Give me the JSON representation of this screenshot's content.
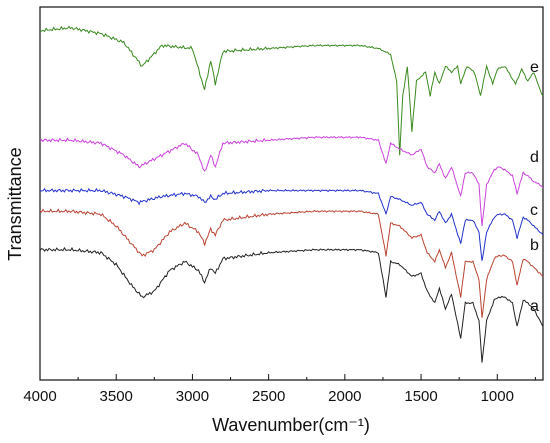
{
  "chart_data": {
    "type": "line",
    "title": "",
    "xlabel": "Wavenumber(cm⁻¹)",
    "ylabel": "Transmittance",
    "xlim": [
      4000,
      700
    ],
    "x_reversed": true,
    "y_ticks_shown": false,
    "grid": false,
    "legend": "none (series labelled at right end of each trace)",
    "xticks": [
      4000,
      3500,
      3000,
      2500,
      2000,
      1500,
      1000
    ],
    "series": [
      {
        "name": "e",
        "color": "#3a8a1e",
        "points": [
          [
            4000,
            0.92
          ],
          [
            3800,
            0.93
          ],
          [
            3600,
            0.91
          ],
          [
            3450,
            0.88
          ],
          [
            3330,
            0.8
          ],
          [
            3200,
            0.87
          ],
          [
            3000,
            0.86
          ],
          [
            2920,
            0.72
          ],
          [
            2880,
            0.82
          ],
          [
            2850,
            0.74
          ],
          [
            2800,
            0.85
          ],
          [
            2500,
            0.86
          ],
          [
            2200,
            0.87
          ],
          [
            1900,
            0.87
          ],
          [
            1780,
            0.86
          ],
          [
            1700,
            0.84
          ],
          [
            1660,
            0.75
          ],
          [
            1640,
            0.5
          ],
          [
            1620,
            0.7
          ],
          [
            1590,
            0.8
          ],
          [
            1560,
            0.58
          ],
          [
            1530,
            0.75
          ],
          [
            1470,
            0.78
          ],
          [
            1440,
            0.7
          ],
          [
            1410,
            0.78
          ],
          [
            1380,
            0.74
          ],
          [
            1340,
            0.8
          ],
          [
            1300,
            0.78
          ],
          [
            1260,
            0.8
          ],
          [
            1240,
            0.74
          ],
          [
            1200,
            0.8
          ],
          [
            1150,
            0.78
          ],
          [
            1110,
            0.7
          ],
          [
            1070,
            0.8
          ],
          [
            1030,
            0.74
          ],
          [
            1000,
            0.79
          ],
          [
            950,
            0.8
          ],
          [
            880,
            0.74
          ],
          [
            840,
            0.79
          ],
          [
            800,
            0.75
          ],
          [
            760,
            0.78
          ],
          [
            720,
            0.72
          ],
          [
            700,
            0.7
          ]
        ]
      },
      {
        "name": "d",
        "color": "#cc44dd",
        "points": [
          [
            4000,
            0.55
          ],
          [
            3800,
            0.55
          ],
          [
            3600,
            0.54
          ],
          [
            3450,
            0.5
          ],
          [
            3350,
            0.46
          ],
          [
            3200,
            0.5
          ],
          [
            3050,
            0.54
          ],
          [
            2960,
            0.5
          ],
          [
            2920,
            0.44
          ],
          [
            2880,
            0.5
          ],
          [
            2850,
            0.46
          ],
          [
            2800,
            0.54
          ],
          [
            2500,
            0.55
          ],
          [
            2200,
            0.56
          ],
          [
            1900,
            0.56
          ],
          [
            1780,
            0.55
          ],
          [
            1730,
            0.47
          ],
          [
            1700,
            0.54
          ],
          [
            1640,
            0.52
          ],
          [
            1560,
            0.5
          ],
          [
            1500,
            0.52
          ],
          [
            1460,
            0.46
          ],
          [
            1410,
            0.44
          ],
          [
            1380,
            0.47
          ],
          [
            1340,
            0.42
          ],
          [
            1300,
            0.46
          ],
          [
            1240,
            0.36
          ],
          [
            1210,
            0.44
          ],
          [
            1160,
            0.44
          ],
          [
            1120,
            0.4
          ],
          [
            1100,
            0.26
          ],
          [
            1070,
            0.4
          ],
          [
            1020,
            0.45
          ],
          [
            990,
            0.46
          ],
          [
            950,
            0.45
          ],
          [
            900,
            0.43
          ],
          [
            870,
            0.37
          ],
          [
            830,
            0.44
          ],
          [
            800,
            0.43
          ],
          [
            760,
            0.41
          ],
          [
            720,
            0.4
          ],
          [
            700,
            0.39
          ]
        ]
      },
      {
        "name": "c",
        "color": "#2233cc",
        "points": [
          [
            4000,
            0.38
          ],
          [
            3800,
            0.38
          ],
          [
            3600,
            0.38
          ],
          [
            3450,
            0.36
          ],
          [
            3350,
            0.34
          ],
          [
            3200,
            0.36
          ],
          [
            3050,
            0.37
          ],
          [
            2960,
            0.36
          ],
          [
            2920,
            0.34
          ],
          [
            2880,
            0.36
          ],
          [
            2850,
            0.35
          ],
          [
            2800,
            0.37
          ],
          [
            2500,
            0.38
          ],
          [
            2200,
            0.38
          ],
          [
            1900,
            0.38
          ],
          [
            1780,
            0.37
          ],
          [
            1730,
            0.3
          ],
          [
            1700,
            0.36
          ],
          [
            1640,
            0.35
          ],
          [
            1560,
            0.33
          ],
          [
            1500,
            0.34
          ],
          [
            1460,
            0.3
          ],
          [
            1410,
            0.28
          ],
          [
            1380,
            0.31
          ],
          [
            1340,
            0.27
          ],
          [
            1300,
            0.3
          ],
          [
            1240,
            0.2
          ],
          [
            1210,
            0.28
          ],
          [
            1160,
            0.28
          ],
          [
            1120,
            0.24
          ],
          [
            1100,
            0.14
          ],
          [
            1070,
            0.24
          ],
          [
            1020,
            0.29
          ],
          [
            990,
            0.3
          ],
          [
            950,
            0.3
          ],
          [
            900,
            0.28
          ],
          [
            870,
            0.22
          ],
          [
            830,
            0.29
          ],
          [
            800,
            0.28
          ],
          [
            760,
            0.26
          ],
          [
            720,
            0.24
          ],
          [
            700,
            0.23
          ]
        ]
      },
      {
        "name": "b",
        "color": "#bb4433",
        "points": [
          [
            4000,
            0.31
          ],
          [
            3800,
            0.31
          ],
          [
            3600,
            0.3
          ],
          [
            3500,
            0.26
          ],
          [
            3400,
            0.2
          ],
          [
            3330,
            0.16
          ],
          [
            3250,
            0.18
          ],
          [
            3150,
            0.24
          ],
          [
            3050,
            0.27
          ],
          [
            2960,
            0.24
          ],
          [
            2920,
            0.2
          ],
          [
            2880,
            0.25
          ],
          [
            2850,
            0.23
          ],
          [
            2800,
            0.28
          ],
          [
            2500,
            0.3
          ],
          [
            2200,
            0.31
          ],
          [
            1900,
            0.31
          ],
          [
            1780,
            0.3
          ],
          [
            1730,
            0.16
          ],
          [
            1700,
            0.27
          ],
          [
            1640,
            0.26
          ],
          [
            1560,
            0.22
          ],
          [
            1500,
            0.23
          ],
          [
            1460,
            0.17
          ],
          [
            1410,
            0.14
          ],
          [
            1380,
            0.18
          ],
          [
            1340,
            0.12
          ],
          [
            1300,
            0.17
          ],
          [
            1240,
            0.02
          ],
          [
            1210,
            0.14
          ],
          [
            1160,
            0.14
          ],
          [
            1120,
            0.08
          ],
          [
            1100,
            -0.05
          ],
          [
            1070,
            0.08
          ],
          [
            1020,
            0.15
          ],
          [
            990,
            0.16
          ],
          [
            950,
            0.16
          ],
          [
            900,
            0.14
          ],
          [
            870,
            0.06
          ],
          [
            830,
            0.15
          ],
          [
            800,
            0.14
          ],
          [
            760,
            0.12
          ],
          [
            720,
            0.1
          ],
          [
            700,
            0.09
          ]
        ]
      },
      {
        "name": "a",
        "color": "#222222",
        "points": [
          [
            4000,
            0.18
          ],
          [
            3800,
            0.18
          ],
          [
            3600,
            0.17
          ],
          [
            3500,
            0.13
          ],
          [
            3400,
            0.06
          ],
          [
            3330,
            0.02
          ],
          [
            3250,
            0.04
          ],
          [
            3150,
            0.11
          ],
          [
            3050,
            0.14
          ],
          [
            2960,
            0.11
          ],
          [
            2920,
            0.07
          ],
          [
            2880,
            0.12
          ],
          [
            2850,
            0.1
          ],
          [
            2800,
            0.15
          ],
          [
            2500,
            0.17
          ],
          [
            2200,
            0.18
          ],
          [
            1900,
            0.18
          ],
          [
            1780,
            0.17
          ],
          [
            1730,
            0.02
          ],
          [
            1700,
            0.14
          ],
          [
            1640,
            0.13
          ],
          [
            1560,
            0.09
          ],
          [
            1500,
            0.1
          ],
          [
            1460,
            0.04
          ],
          [
            1410,
            0.0
          ],
          [
            1380,
            0.05
          ],
          [
            1340,
            -0.02
          ],
          [
            1300,
            0.03
          ],
          [
            1240,
            -0.12
          ],
          [
            1210,
            0.0
          ],
          [
            1160,
            0.0
          ],
          [
            1120,
            -0.06
          ],
          [
            1100,
            -0.2
          ],
          [
            1070,
            -0.06
          ],
          [
            1020,
            0.01
          ],
          [
            990,
            0.02
          ],
          [
            950,
            0.02
          ],
          [
            900,
            0.0
          ],
          [
            870,
            -0.08
          ],
          [
            830,
            0.01
          ],
          [
            800,
            0.0
          ],
          [
            760,
            -0.02
          ],
          [
            720,
            -0.06
          ],
          [
            700,
            -0.08
          ]
        ]
      }
    ]
  }
}
